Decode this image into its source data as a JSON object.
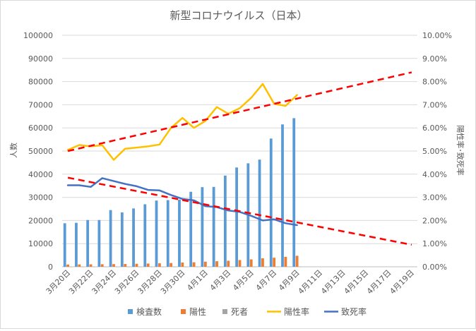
{
  "chart_data": {
    "type": "bar",
    "title": "新型コロナウイルス（日本）",
    "ylabel_left": "人数",
    "ylabel_right": "陽性率･致死率",
    "ylim_left": [
      0,
      100000
    ],
    "ylim_right": [
      0,
      0.1
    ],
    "y_ticks_left": [
      "0",
      "10000",
      "20000",
      "30000",
      "40000",
      "50000",
      "60000",
      "70000",
      "80000",
      "90000",
      "100000"
    ],
    "y_ticks_right": [
      "0.00%",
      "1.00%",
      "2.00%",
      "3.00%",
      "4.00%",
      "5.00%",
      "6.00%",
      "7.00%",
      "8.00%",
      "9.00%",
      "10.00%"
    ],
    "categories": [
      "3月20日",
      "3月21日",
      "3月22日",
      "3月23日",
      "3月24日",
      "3月25日",
      "3月26日",
      "3月27日",
      "3月28日",
      "3月29日",
      "3月30日",
      "3月31日",
      "4月1日",
      "4月2日",
      "4月3日",
      "4月4日",
      "4月5日",
      "4月6日",
      "4月7日",
      "4月8日",
      "4月9日",
      "4月10日",
      "4月11日",
      "4月12日",
      "4月13日",
      "4月14日",
      "4月15日",
      "4月16日",
      "4月17日",
      "4月18日",
      "4月19日"
    ],
    "x_tick_labels": [
      "3月20日",
      "3月22日",
      "3月24日",
      "3月26日",
      "3月28日",
      "3月30日",
      "4月1日",
      "4月3日",
      "4月5日",
      "4月7日",
      "4月9日",
      "4月11日",
      "4月13日",
      "4月15日",
      "4月17日",
      "4月19日"
    ],
    "series": [
      {
        "name": "検査数",
        "type": "bar",
        "axis": "left",
        "color": "#5b9bd5",
        "values": [
          18800,
          19000,
          20200,
          20200,
          24500,
          23500,
          25200,
          27000,
          28600,
          28800,
          29000,
          32400,
          34400,
          34500,
          39400,
          42900,
          44700,
          46300,
          55400,
          61500,
          64200,
          null,
          null,
          null,
          null,
          null,
          null,
          null,
          null,
          null,
          null
        ]
      },
      {
        "name": "陽性",
        "type": "bar",
        "axis": "left",
        "color": "#ed7d31",
        "values": [
          950,
          1000,
          1050,
          1100,
          1150,
          1200,
          1300,
          1400,
          1500,
          1600,
          1850,
          1950,
          2200,
          2400,
          2600,
          2900,
          3200,
          3650,
          3900,
          4300,
          4750,
          null,
          null,
          null,
          null,
          null,
          null,
          null,
          null,
          null,
          null
        ]
      },
      {
        "name": "死者",
        "type": "bar",
        "axis": "left",
        "color": "#a5a5a5",
        "values": [
          33,
          35,
          36,
          40,
          42,
          44,
          46,
          48,
          50,
          52,
          55,
          56,
          57,
          63,
          69,
          73,
          77,
          80,
          85,
          87,
          88,
          null,
          null,
          null,
          null,
          null,
          null,
          null,
          null,
          null,
          null
        ]
      },
      {
        "name": "陽性率",
        "type": "line",
        "axis": "right",
        "color": "#ffc000",
        "values": [
          0.0505,
          0.0526,
          0.052,
          0.0525,
          0.0462,
          0.051,
          0.0515,
          0.052,
          0.0528,
          0.06,
          0.0643,
          0.06,
          0.063,
          0.069,
          0.0661,
          0.0685,
          0.073,
          0.079,
          0.0704,
          0.0695,
          0.0742,
          null,
          null,
          null,
          null,
          null,
          null,
          null,
          null,
          null,
          null
        ]
      },
      {
        "name": "致死率",
        "type": "line",
        "axis": "right",
        "color": "#4472c4",
        "values": [
          0.0352,
          0.0352,
          0.0345,
          0.0383,
          0.037,
          0.0358,
          0.0348,
          0.0332,
          0.033,
          0.031,
          0.0293,
          0.0287,
          0.0262,
          0.0258,
          0.0243,
          0.0237,
          0.022,
          0.02,
          0.0205,
          0.0188,
          0.018,
          null,
          null,
          null,
          null,
          null,
          null,
          null,
          null,
          null,
          null
        ]
      }
    ],
    "trendlines": [
      {
        "of": "陽性率",
        "style": "dashed",
        "color": "#ff0000",
        "from": [
          0,
          0.05
        ],
        "to": [
          30,
          0.084
        ]
      },
      {
        "of": "致死率",
        "style": "dashed",
        "color": "#ff0000",
        "from": [
          0,
          0.0385
        ],
        "to": [
          30,
          0.0095
        ]
      }
    ],
    "legend": {
      "position": "bottom",
      "items": [
        "検査数",
        "陽性",
        "死者",
        "陽性率",
        "致死率"
      ]
    },
    "grid": true
  }
}
